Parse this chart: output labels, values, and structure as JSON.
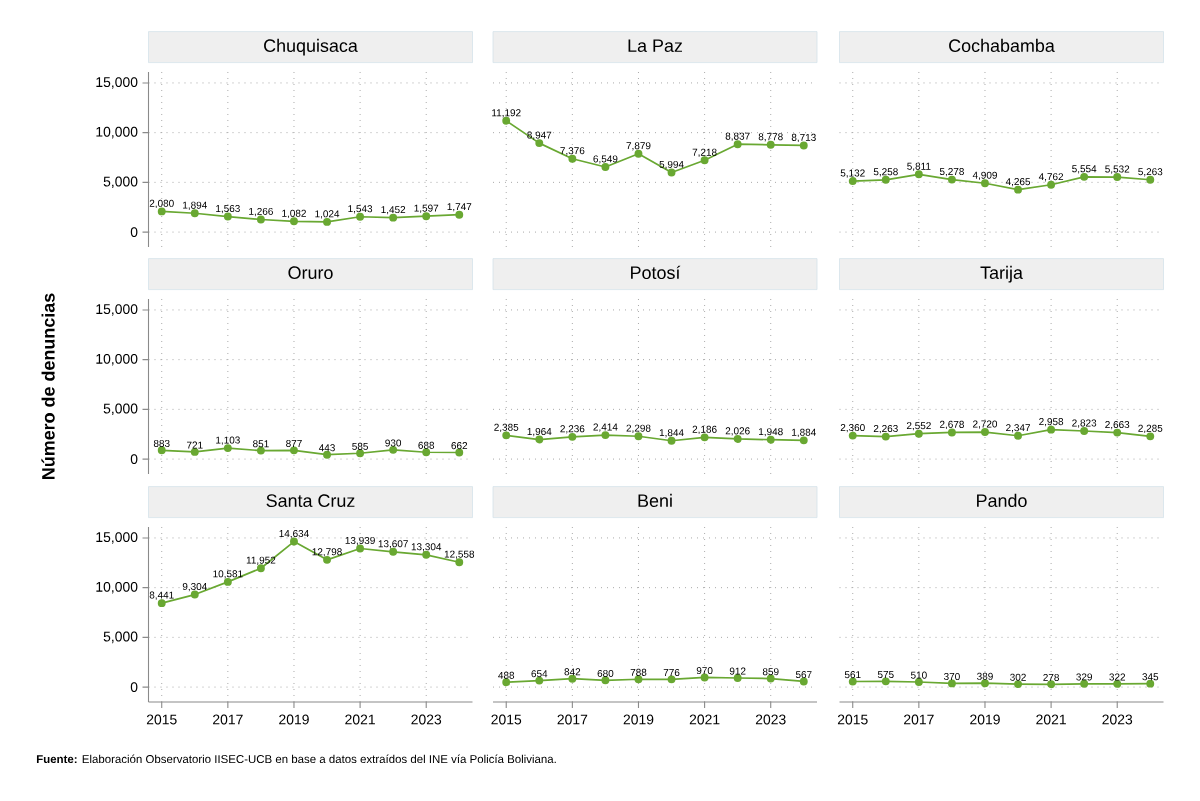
{
  "chart_data": [
    {
      "type": "line",
      "title": "Chuquisaca",
      "x": [
        2015,
        2016,
        2017,
        2018,
        2019,
        2020,
        2021,
        2022,
        2023,
        2024
      ],
      "values": [
        2080,
        1894,
        1563,
        1266,
        1082,
        1024,
        1543,
        1452,
        1597,
        1747
      ],
      "value_labels": [
        "2,080",
        "1,894",
        "1,563",
        "1,266",
        "1,082",
        "1,024",
        "1,543",
        "1,452",
        "1,597",
        "1,747"
      ],
      "color": "#69a832",
      "xlim": [
        2014.6,
        2024.4
      ],
      "ylim": [
        -1500,
        16100
      ],
      "xticks": [
        2015,
        2017,
        2019,
        2021,
        2023
      ],
      "yticks": [
        0,
        {
          "value": 5000,
          "label": "5,000"
        },
        {
          "value": 10000,
          "label": "10,000"
        },
        {
          "value": 15000,
          "label": "15,000"
        }
      ],
      "grid": true,
      "marker": "circle",
      "tick_labels": "y"
    },
    {
      "type": "line",
      "title": "La Paz",
      "x": [
        2015,
        2016,
        2017,
        2018,
        2019,
        2020,
        2021,
        2022,
        2023,
        2024
      ],
      "values": [
        11192,
        8947,
        7376,
        6549,
        7879,
        5994,
        7218,
        8837,
        8778,
        8713
      ],
      "value_labels": [
        "11,192",
        "8,947",
        "7,376",
        "6,549",
        "7,879",
        "5,994",
        "7,218",
        "8,837",
        "8,778",
        "8,713"
      ],
      "color": "#69a832",
      "xlim": [
        2014.6,
        2024.4
      ],
      "ylim": [
        -1500,
        16100
      ],
      "xticks": [
        2015,
        2017,
        2019,
        2021,
        2023
      ],
      "yticks": [
        0,
        5000,
        10000,
        15000
      ],
      "grid": true,
      "marker": "circle",
      "tick_labels": false
    },
    {
      "type": "line",
      "title": "Cochabamba",
      "x": [
        2015,
        2016,
        2017,
        2018,
        2019,
        2020,
        2021,
        2022,
        2023,
        2024
      ],
      "values": [
        5132,
        5258,
        5811,
        5278,
        4909,
        4265,
        4762,
        5554,
        5532,
        5263
      ],
      "value_labels": [
        "5,132",
        "5,258",
        "5,811",
        "5,278",
        "4,909",
        "4,265",
        "4,762",
        "5,554",
        "5,532",
        "5,263"
      ],
      "color": "#69a832",
      "xlim": [
        2014.6,
        2024.4
      ],
      "ylim": [
        -1500,
        16100
      ],
      "xticks": [
        2015,
        2017,
        2019,
        2021,
        2023
      ],
      "yticks": [
        0,
        5000,
        10000,
        15000
      ],
      "grid": true,
      "marker": "circle",
      "tick_labels": false
    },
    {
      "type": "line",
      "title": "Oruro",
      "ylabel": "Número de denuncias",
      "x": [
        2015,
        2016,
        2017,
        2018,
        2019,
        2020,
        2021,
        2022,
        2023,
        2024
      ],
      "values": [
        883,
        721,
        1103,
        851,
        877,
        443,
        585,
        930,
        688,
        662
      ],
      "value_labels": [
        "883",
        "721",
        "1,103",
        "851",
        "877",
        "443",
        "585",
        "930",
        "688",
        "662"
      ],
      "color": "#69a832",
      "xlim": [
        2014.6,
        2024.4
      ],
      "ylim": [
        -1500,
        16100
      ],
      "xticks": [
        2015,
        2017,
        2019,
        2021,
        2023
      ],
      "yticks": [
        0,
        {
          "value": 5000,
          "label": "5,000"
        },
        {
          "value": 10000,
          "label": "10,000"
        },
        {
          "value": 15000,
          "label": "15,000"
        }
      ],
      "grid": true,
      "marker": "circle",
      "tick_labels": "y"
    },
    {
      "type": "line",
      "title": "Potosí",
      "x": [
        2015,
        2016,
        2017,
        2018,
        2019,
        2020,
        2021,
        2022,
        2023,
        2024
      ],
      "values": [
        2385,
        1964,
        2236,
        2414,
        2298,
        1844,
        2186,
        2026,
        1948,
        1884
      ],
      "value_labels": [
        "2,385",
        "1,964",
        "2,236",
        "2,414",
        "2,298",
        "1,844",
        "2,186",
        "2,026",
        "1,948",
        "1,884"
      ],
      "color": "#69a832",
      "xlim": [
        2014.6,
        2024.4
      ],
      "ylim": [
        -1500,
        16100
      ],
      "xticks": [
        2015,
        2017,
        2019,
        2021,
        2023
      ],
      "yticks": [
        0,
        5000,
        10000,
        15000
      ],
      "grid": true,
      "marker": "circle",
      "tick_labels": false
    },
    {
      "type": "line",
      "title": "Tarija",
      "x": [
        2015,
        2016,
        2017,
        2018,
        2019,
        2020,
        2021,
        2022,
        2023,
        2024
      ],
      "values": [
        2360,
        2263,
        2552,
        2678,
        2720,
        2347,
        2958,
        2823,
        2663,
        2285
      ],
      "value_labels": [
        "2,360",
        "2,263",
        "2,552",
        "2,678",
        "2,720",
        "2,347",
        "2,958",
        "2,823",
        "2,663",
        "2,285"
      ],
      "color": "#69a832",
      "xlim": [
        2014.6,
        2024.4
      ],
      "ylim": [
        -1500,
        16100
      ],
      "xticks": [
        2015,
        2017,
        2019,
        2021,
        2023
      ],
      "yticks": [
        0,
        5000,
        10000,
        15000
      ],
      "grid": true,
      "marker": "circle",
      "tick_labels": false
    },
    {
      "type": "line",
      "title": "Santa Cruz",
      "x": [
        2015,
        2016,
        2017,
        2018,
        2019,
        2020,
        2021,
        2022,
        2023,
        2024
      ],
      "values": [
        8441,
        9304,
        10581,
        11952,
        14634,
        12798,
        13939,
        13607,
        13304,
        12558
      ],
      "value_labels": [
        "8,441",
        "9,304",
        "10,581",
        "11,952",
        "14,634",
        "12,798",
        "13,939",
        "13,607",
        "13,304",
        "12,558"
      ],
      "color": "#69a832",
      "xlim": [
        2014.6,
        2024.4
      ],
      "ylim": [
        -1500,
        16100
      ],
      "xticks": [
        2015,
        2017,
        2019,
        2021,
        2023
      ],
      "yticks": [
        0,
        {
          "value": 5000,
          "label": "5,000"
        },
        {
          "value": 10000,
          "label": "10,000"
        },
        {
          "value": 15000,
          "label": "15,000"
        }
      ],
      "grid": true,
      "marker": "circle",
      "annotations": [
        "**Fuente:** Elaboración Observatorio IISEC-UCB en base a datos extraídos del INE vía Policía Boliviana."
      ]
    },
    {
      "type": "line",
      "title": "Beni",
      "x": [
        2015,
        2016,
        2017,
        2018,
        2019,
        2020,
        2021,
        2022,
        2023,
        2024
      ],
      "values": [
        488,
        654,
        842,
        680,
        788,
        776,
        970,
        912,
        859,
        567
      ],
      "value_labels": [
        "488",
        "654",
        "842",
        "680",
        "788",
        "776",
        "970",
        "912",
        "859",
        "567"
      ],
      "color": "#69a832",
      "xlim": [
        2014.6,
        2024.4
      ],
      "ylim": [
        -1500,
        16100
      ],
      "xticks": [
        2015,
        2017,
        2019,
        2021,
        2023
      ],
      "yticks": [
        0,
        5000,
        10000,
        15000
      ],
      "grid": true,
      "marker": "circle",
      "tick_labels": "x"
    },
    {
      "type": "line",
      "title": "Pando",
      "x": [
        2015,
        2016,
        2017,
        2018,
        2019,
        2020,
        2021,
        2022,
        2023,
        2024
      ],
      "values": [
        561,
        575,
        510,
        370,
        389,
        302,
        278,
        329,
        322,
        345
      ],
      "value_labels": [
        "561",
        "575",
        "510",
        "370",
        "389",
        "302",
        "278",
        "329",
        "322",
        "345"
      ],
      "color": "#69a832",
      "xlim": [
        2014.6,
        2024.4
      ],
      "ylim": [
        -1500,
        16100
      ],
      "xticks": [
        2015,
        2017,
        2019,
        2021,
        2023
      ],
      "yticks": [
        0,
        5000,
        10000,
        15000
      ],
      "grid": true,
      "marker": "circle",
      "tick_labels": "x"
    }
  ]
}
